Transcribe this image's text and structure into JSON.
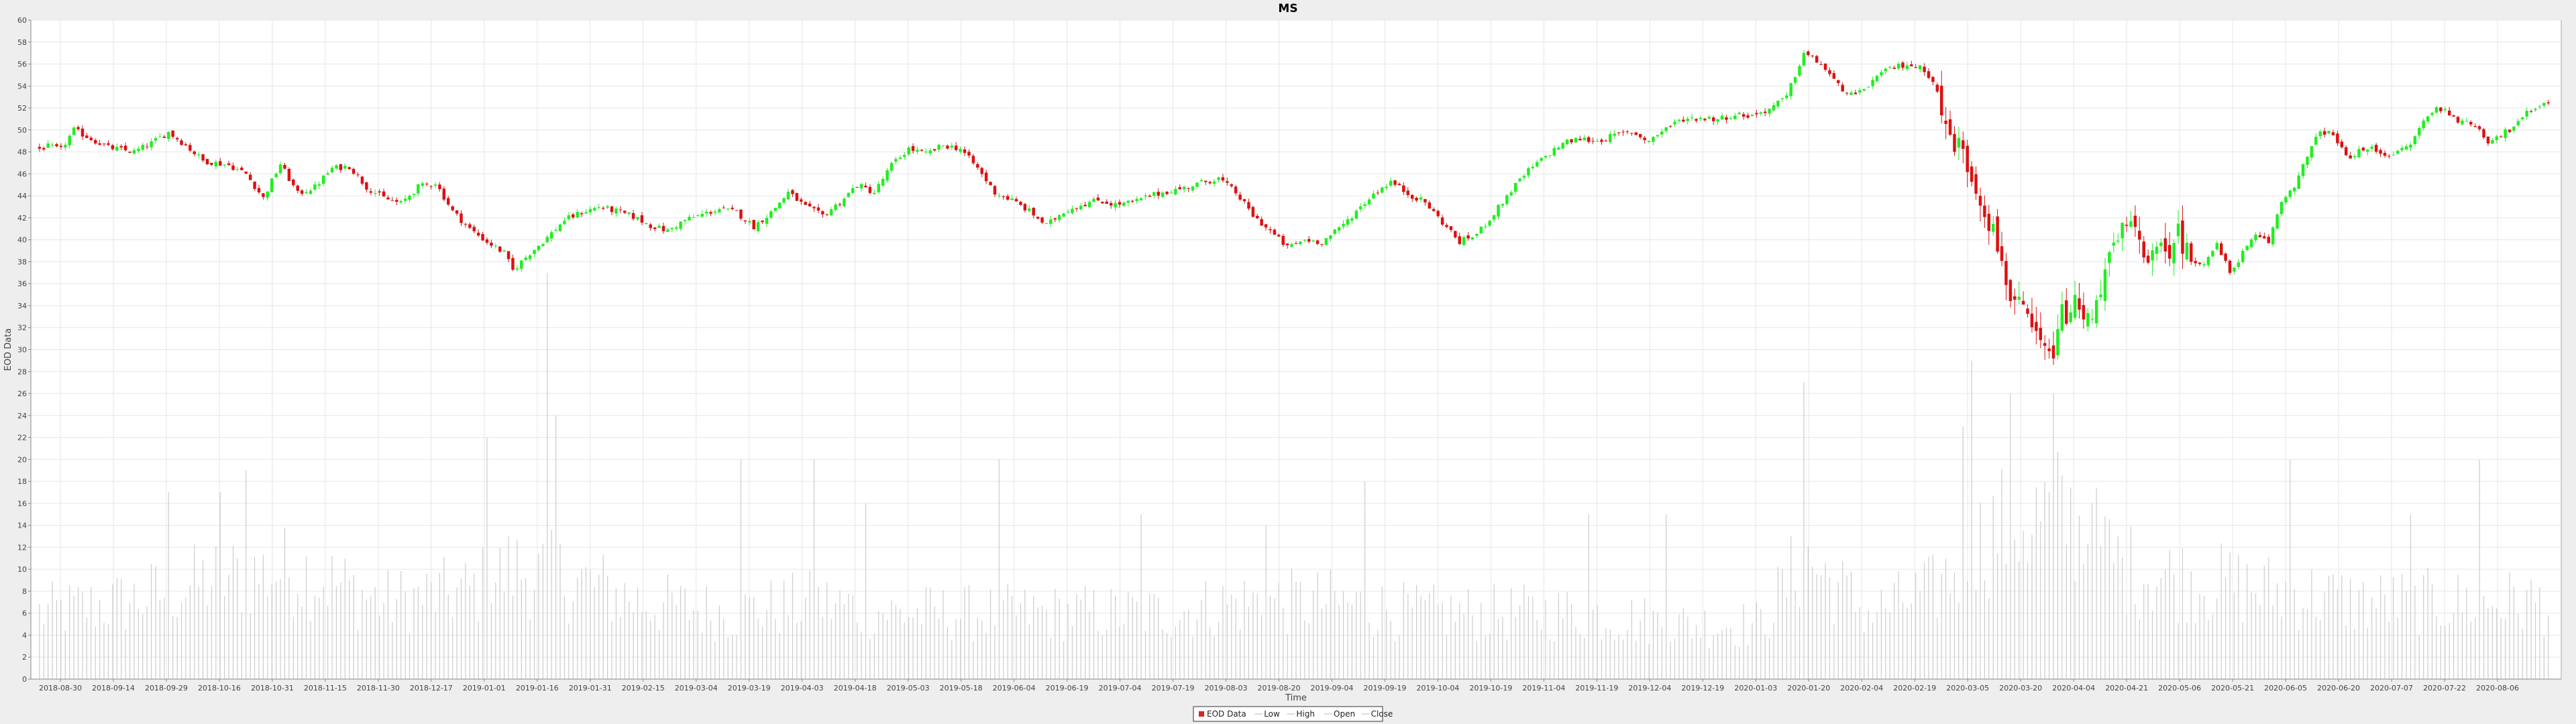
{
  "chart_data": {
    "type": "candlestick",
    "title": "MS",
    "xlabel": "Time",
    "ylabel": "EOD Data",
    "ylim": [
      0,
      60
    ],
    "y_ticks": [
      0,
      2,
      4,
      6,
      8,
      10,
      12,
      14,
      16,
      18,
      20,
      22,
      24,
      26,
      28,
      30,
      32,
      34,
      36,
      38,
      40,
      42,
      44,
      46,
      48,
      50,
      52,
      54,
      56,
      58,
      60
    ],
    "x_tick_labels": [
      "2018-08-30",
      "2018-09-14",
      "2018-09-29",
      "2018-10-16",
      "2018-10-31",
      "2018-11-15",
      "2018-11-30",
      "2018-12-17",
      "2019-01-01",
      "2019-01-16",
      "2019-01-31",
      "2019-02-15",
      "2019-03-04",
      "2019-03-19",
      "2019-04-03",
      "2019-04-18",
      "2019-05-03",
      "2019-05-18",
      "2019-06-04",
      "2019-06-19",
      "2019-07-04",
      "2019-07-19",
      "2019-08-03",
      "2019-08-20",
      "2019-09-04",
      "2019-09-19",
      "2019-10-04",
      "2019-10-19",
      "2019-11-04",
      "2019-11-19",
      "2019-12-04",
      "2019-12-19",
      "2020-01-03",
      "2020-01-20",
      "2020-02-04",
      "2020-02-19",
      "2020-03-05",
      "2020-03-20",
      "2020-04-04",
      "2020-04-21",
      "2020-05-06",
      "2020-05-21",
      "2020-06-05",
      "2020-06-20",
      "2020-07-07",
      "2020-07-22",
      "2020-08-06"
    ],
    "grid": true,
    "legend_position": "bottom-center",
    "legend": [
      "EOD Data",
      "Low",
      "High",
      "Open",
      "Close"
    ],
    "colors": {
      "up": "#22ee22",
      "down": "#dd1111",
      "volume": "#cccccc",
      "grid": "#e6e6e6",
      "plot_bg": "#ffffff",
      "page_bg": "#eeeeee",
      "legend_swatch": "#dd2222"
    },
    "price_anchors": [
      [
        0,
        48.3
      ],
      [
        2,
        48.5
      ],
      [
        5,
        48.2
      ],
      [
        8,
        50.0
      ],
      [
        12,
        49.2
      ],
      [
        16,
        48.4
      ],
      [
        22,
        48.0
      ],
      [
        26,
        48.8
      ],
      [
        30,
        49.8
      ],
      [
        34,
        48.6
      ],
      [
        38,
        47.2
      ],
      [
        44,
        46.8
      ],
      [
        48,
        46.0
      ],
      [
        52,
        43.8
      ],
      [
        56,
        46.9
      ],
      [
        60,
        44.2
      ],
      [
        64,
        44.8
      ],
      [
        68,
        46.5
      ],
      [
        72,
        46.7
      ],
      [
        76,
        44.8
      ],
      [
        80,
        43.8
      ],
      [
        84,
        43.3
      ],
      [
        88,
        44.8
      ],
      [
        92,
        45.2
      ],
      [
        96,
        42.6
      ],
      [
        100,
        41.0
      ],
      [
        104,
        39.8
      ],
      [
        108,
        38.8
      ],
      [
        110,
        37.2
      ],
      [
        114,
        38.8
      ],
      [
        118,
        40.2
      ],
      [
        122,
        41.8
      ],
      [
        126,
        42.5
      ],
      [
        130,
        43.0
      ],
      [
        134,
        42.6
      ],
      [
        138,
        42.1
      ],
      [
        142,
        41.3
      ],
      [
        146,
        40.8
      ],
      [
        150,
        41.8
      ],
      [
        154,
        42.3
      ],
      [
        158,
        42.8
      ],
      [
        162,
        42.5
      ],
      [
        166,
        41.2
      ],
      [
        170,
        42.5
      ],
      [
        174,
        44.3
      ],
      [
        178,
        43.0
      ],
      [
        182,
        42.2
      ],
      [
        186,
        43.4
      ],
      [
        190,
        45.0
      ],
      [
        194,
        44.3
      ],
      [
        198,
        46.8
      ],
      [
        202,
        48.3
      ],
      [
        206,
        47.8
      ],
      [
        210,
        48.6
      ],
      [
        214,
        48.3
      ],
      [
        218,
        46.5
      ],
      [
        222,
        44.3
      ],
      [
        226,
        43.6
      ],
      [
        230,
        42.6
      ],
      [
        234,
        41.3
      ],
      [
        238,
        42.6
      ],
      [
        242,
        43.2
      ],
      [
        246,
        43.6
      ],
      [
        250,
        43.2
      ],
      [
        254,
        43.4
      ],
      [
        258,
        44.0
      ],
      [
        262,
        44.4
      ],
      [
        266,
        44.7
      ],
      [
        270,
        45.2
      ],
      [
        274,
        45.6
      ],
      [
        278,
        44.3
      ],
      [
        282,
        42.2
      ],
      [
        286,
        40.8
      ],
      [
        290,
        39.3
      ],
      [
        294,
        40.0
      ],
      [
        298,
        39.8
      ],
      [
        302,
        41.0
      ],
      [
        306,
        42.6
      ],
      [
        310,
        44.2
      ],
      [
        314,
        45.3
      ],
      [
        318,
        44.2
      ],
      [
        322,
        43.4
      ],
      [
        326,
        41.6
      ],
      [
        330,
        39.8
      ],
      [
        334,
        40.5
      ],
      [
        338,
        42.4
      ],
      [
        342,
        44.5
      ],
      [
        346,
        46.3
      ],
      [
        350,
        47.6
      ],
      [
        354,
        48.8
      ],
      [
        358,
        49.2
      ],
      [
        362,
        49.0
      ],
      [
        366,
        49.5
      ],
      [
        370,
        49.8
      ],
      [
        374,
        49.0
      ],
      [
        378,
        50.2
      ],
      [
        382,
        51.0
      ],
      [
        386,
        51.1
      ],
      [
        390,
        51.0
      ],
      [
        394,
        51.4
      ],
      [
        398,
        51.3
      ],
      [
        402,
        51.9
      ],
      [
        406,
        53.0
      ],
      [
        410,
        57.0
      ],
      [
        414,
        56.0
      ],
      [
        418,
        54.0
      ],
      [
        422,
        53.0
      ],
      [
        426,
        54.5
      ],
      [
        430,
        55.6
      ],
      [
        434,
        56.0
      ],
      [
        438,
        55.5
      ],
      [
        440,
        54.5
      ],
      [
        443,
        50.0
      ],
      [
        446,
        48.5
      ],
      [
        449,
        46.0
      ],
      [
        452,
        43.0
      ],
      [
        455,
        39.5
      ],
      [
        458,
        35.0
      ],
      [
        461,
        33.0
      ],
      [
        464,
        31.0
      ],
      [
        467,
        29.0
      ],
      [
        470,
        33.0
      ],
      [
        473,
        34.0
      ],
      [
        476,
        32.5
      ],
      [
        479,
        36.0
      ],
      [
        482,
        39.0
      ],
      [
        485,
        41.3
      ],
      [
        488,
        40.0
      ],
      [
        491,
        38.3
      ],
      [
        494,
        38.8
      ],
      [
        497,
        40.6
      ],
      [
        500,
        38.0
      ],
      [
        503,
        38.0
      ],
      [
        506,
        39.5
      ],
      [
        509,
        37.0
      ],
      [
        512,
        38.8
      ],
      [
        515,
        40.3
      ],
      [
        518,
        39.8
      ],
      [
        521,
        43.5
      ],
      [
        524,
        45.0
      ],
      [
        527,
        47.5
      ],
      [
        530,
        50.0
      ],
      [
        533,
        49.5
      ],
      [
        536,
        47.5
      ],
      [
        539,
        48.0
      ],
      [
        542,
        48.3
      ],
      [
        545,
        47.8
      ],
      [
        548,
        47.9
      ],
      [
        551,
        48.7
      ],
      [
        554,
        50.8
      ],
      [
        557,
        52.0
      ],
      [
        560,
        51.6
      ],
      [
        563,
        50.6
      ],
      [
        566,
        50.5
      ],
      [
        569,
        49.0
      ],
      [
        572,
        49.6
      ],
      [
        575,
        50.2
      ],
      [
        578,
        51.5
      ],
      [
        581,
        52.3
      ],
      [
        583,
        52.6
      ]
    ],
    "volume_anchors": [
      [
        0,
        6
      ],
      [
        20,
        7
      ],
      [
        40,
        9
      ],
      [
        60,
        10
      ],
      [
        80,
        7
      ],
      [
        100,
        8
      ],
      [
        110,
        10
      ],
      [
        125,
        9
      ],
      [
        140,
        7
      ],
      [
        160,
        6
      ],
      [
        180,
        7
      ],
      [
        200,
        6
      ],
      [
        220,
        6
      ],
      [
        240,
        6
      ],
      [
        260,
        6
      ],
      [
        280,
        7
      ],
      [
        300,
        7
      ],
      [
        320,
        6
      ],
      [
        340,
        6
      ],
      [
        360,
        6
      ],
      [
        380,
        5
      ],
      [
        400,
        5
      ],
      [
        410,
        11
      ],
      [
        425,
        6
      ],
      [
        440,
        8
      ],
      [
        455,
        14
      ],
      [
        470,
        15
      ],
      [
        485,
        10
      ],
      [
        500,
        9
      ],
      [
        520,
        8
      ],
      [
        540,
        7
      ],
      [
        560,
        7
      ],
      [
        583,
        7
      ]
    ],
    "volume_spikes": [
      [
        30,
        17
      ],
      [
        42,
        17
      ],
      [
        48,
        19
      ],
      [
        104,
        22
      ],
      [
        118,
        37
      ],
      [
        120,
        24
      ],
      [
        163,
        20
      ],
      [
        180,
        20
      ],
      [
        192,
        16
      ],
      [
        223,
        20
      ],
      [
        256,
        15
      ],
      [
        285,
        14
      ],
      [
        308,
        18
      ],
      [
        360,
        15
      ],
      [
        378,
        15
      ],
      [
        410,
        27
      ],
      [
        447,
        23
      ],
      [
        449,
        29
      ],
      [
        458,
        26
      ],
      [
        468,
        26
      ],
      [
        477,
        16
      ],
      [
        523,
        20
      ],
      [
        551,
        15
      ],
      [
        567,
        20
      ]
    ]
  }
}
